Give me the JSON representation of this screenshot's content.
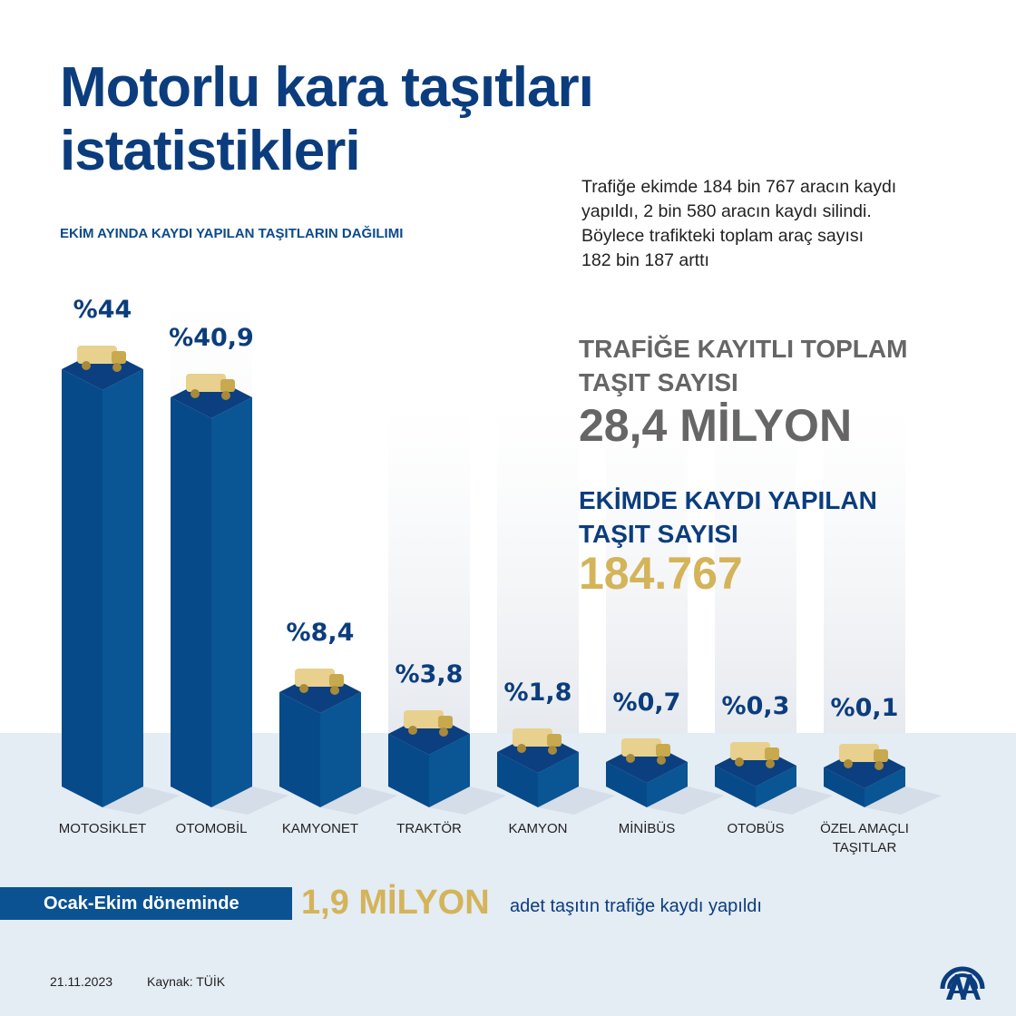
{
  "header": {
    "title_line1": "Motorlu kara taşıtları",
    "title_line2": "istatistikleri",
    "chart_subtitle": "EKİM AYINDA KAYDI YAPILAN TAŞITLARIN DAĞILIMI"
  },
  "description": [
    "Trafiğe ekimde 184 bin 767 aracın kaydı",
    "yapıldı, 2 bin 580 aracın kaydı silindi.",
    "Böylece trafikteki toplam araç sayısı",
    "182 bin 187 arttı"
  ],
  "kpi_total": {
    "label_line1": "TRAFİĞE KAYITLI TOPLAM",
    "label_line2": "TAŞIT SAYISI",
    "value": "28,4 MİLYON"
  },
  "kpi_october": {
    "label_line1": "EKİMDE KAYDI YAPILAN",
    "label_line2": "TAŞIT SAYISI",
    "value": "184.767"
  },
  "footer_banner": {
    "label": "Ocak-Ekim döneminde",
    "value": "1,9 MİLYON",
    "text": "adet taşıtın trafiğe kaydı yapıldı"
  },
  "footer": {
    "date": "21.11.2023",
    "source": "Kaynak: TÜİK",
    "logo": "AA"
  },
  "colors": {
    "navy": "#0b3d7e",
    "bar_left": "#064a8a",
    "bar_right": "#0a5594",
    "bar_top": "#0b3f80",
    "gold": "#d4b45a",
    "gray": "#666666"
  },
  "chart_data": {
    "type": "bar",
    "title": "EKİM AYINDA KAYDI YAPILAN TAŞITLARIN DAĞILIMI",
    "categories": [
      "MOTOSİKLET",
      "OTOMOBİL",
      "KAMYONET",
      "TRAKTÖR",
      "KAMYON",
      "MİNİBÜS",
      "OTOBÜS",
      "ÖZEL AMAÇLI TAŞITLAR"
    ],
    "category_lines": [
      [
        "MOTOSİKLET"
      ],
      [
        "OTOMOBİL"
      ],
      [
        "KAMYONET"
      ],
      [
        "TRAKTÖR"
      ],
      [
        "KAMYON"
      ],
      [
        "MİNİBÜS"
      ],
      [
        "OTOBÜS"
      ],
      [
        "ÖZEL AMAÇLI",
        "TAŞITLAR"
      ]
    ],
    "values": [
      44,
      40.9,
      8.4,
      3.8,
      1.8,
      0.7,
      0.3,
      0.1
    ],
    "value_labels": [
      "%44",
      "%40,9",
      "%8,4",
      "%3,8",
      "%1,8",
      "%0,7",
      "%0,3",
      "%0,1"
    ],
    "icons": [
      "motorcycle-icon",
      "car-icon",
      "truck-icon",
      "tractor-icon",
      "lorry-icon",
      "minibus-icon",
      "bus-icon",
      "fire-truck-icon"
    ],
    "unit": "%",
    "style": "3d-isometric"
  }
}
